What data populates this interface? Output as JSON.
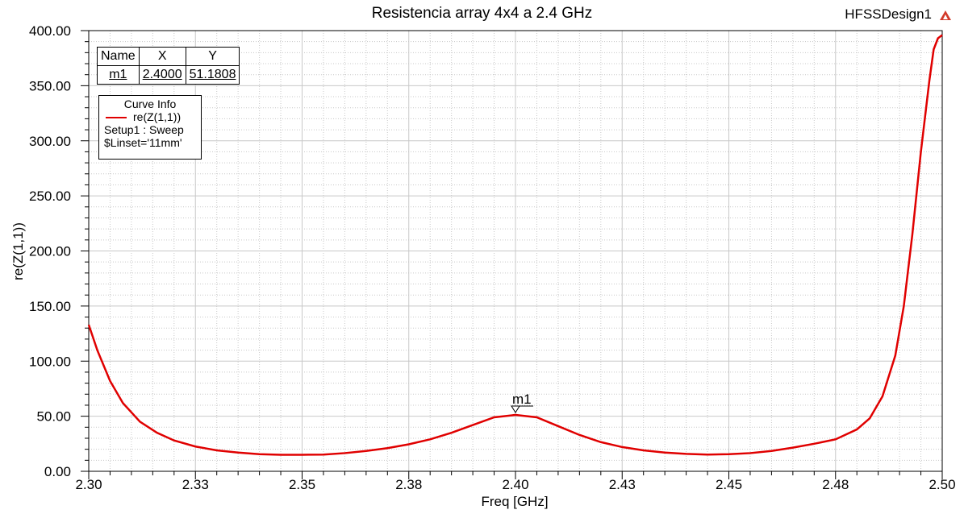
{
  "header": {
    "title": "Resistencia array 4x4 a 2.4 GHz",
    "design_name": "HFSSDesign1",
    "design_icon": "ansys-logo-icon"
  },
  "marker_table": {
    "headers": [
      "Name",
      "X",
      "Y"
    ],
    "rows": [
      [
        "m1",
        "2.4000",
        "51.1808"
      ]
    ]
  },
  "curve_info": {
    "title": "Curve Info",
    "series_name": "re(Z(1,1))",
    "setup": "Setup1 : Sweep",
    "param": "$Linset='11mm'"
  },
  "colors": {
    "curve": "#e00000",
    "grid": "#c8c8c8",
    "axis": "#000000"
  },
  "chart_data": {
    "type": "line",
    "xlabel": "Freq [GHz]",
    "ylabel": "re(Z(1,1))",
    "xlim": [
      2.3,
      2.5
    ],
    "ylim": [
      0,
      400
    ],
    "x_ticks": [
      "2.30",
      "2.33",
      "2.35",
      "2.38",
      "2.40",
      "2.43",
      "2.45",
      "2.48",
      "2.50"
    ],
    "x_tick_values": [
      2.3,
      2.325,
      2.35,
      2.375,
      2.4,
      2.425,
      2.45,
      2.475,
      2.5
    ],
    "y_ticks": [
      "0.00",
      "50.00",
      "100.00",
      "150.00",
      "200.00",
      "250.00",
      "300.00",
      "350.00",
      "400.00"
    ],
    "y_tick_values": [
      0,
      50,
      100,
      150,
      200,
      250,
      300,
      350,
      400
    ],
    "grid": true,
    "marker": {
      "label": "m1",
      "x": 2.4,
      "y": 51.1808
    },
    "series": [
      {
        "name": "re(Z(1,1))",
        "x": [
          2.3,
          2.302,
          2.305,
          2.308,
          2.312,
          2.316,
          2.32,
          2.325,
          2.33,
          2.335,
          2.34,
          2.345,
          2.35,
          2.355,
          2.36,
          2.365,
          2.37,
          2.375,
          2.38,
          2.385,
          2.39,
          2.395,
          2.4,
          2.405,
          2.41,
          2.415,
          2.42,
          2.425,
          2.43,
          2.435,
          2.44,
          2.445,
          2.45,
          2.455,
          2.46,
          2.465,
          2.47,
          2.475,
          2.48,
          2.483,
          2.486,
          2.489,
          2.491,
          2.493,
          2.495,
          2.497,
          2.498,
          2.499,
          2.5
        ],
        "y": [
          133,
          110,
          82,
          62,
          45,
          35,
          28,
          22.5,
          19,
          17,
          15.5,
          15,
          15,
          15.2,
          16.5,
          18.5,
          21,
          24.5,
          29,
          35,
          42,
          49,
          51.2,
          49,
          41,
          33,
          26.5,
          22,
          19,
          17,
          15.8,
          15.2,
          15.5,
          16.5,
          18.5,
          21.5,
          25,
          29,
          38,
          48,
          68,
          105,
          150,
          215,
          290,
          355,
          383,
          393,
          396
        ]
      }
    ]
  }
}
